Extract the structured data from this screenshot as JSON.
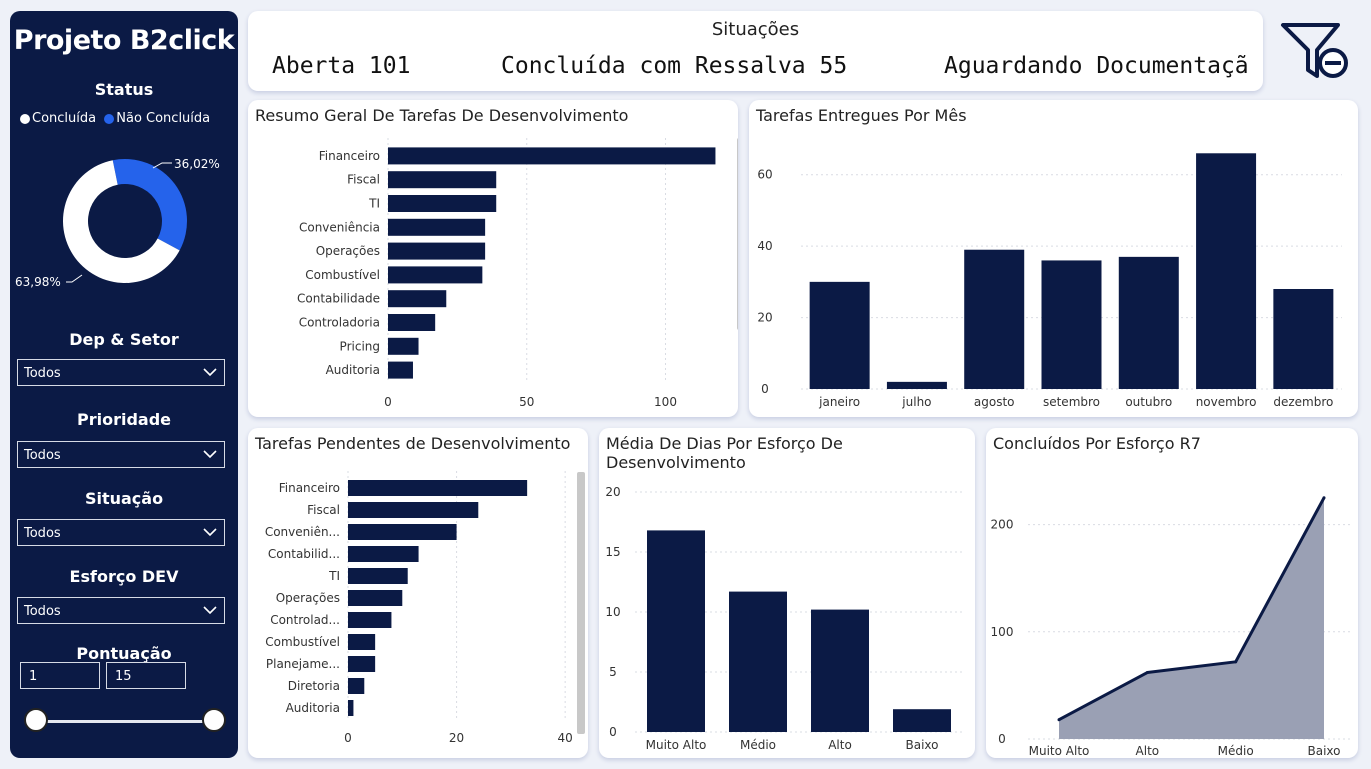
{
  "sidebar": {
    "title": "Projeto B2click",
    "status_label": "Status",
    "legend": [
      {
        "label": "Concluída",
        "color": "#ffffff"
      },
      {
        "label": "Não Concluída",
        "color": "#2563eb"
      }
    ],
    "filters": [
      {
        "label": "Dep & Setor",
        "value": "Todos"
      },
      {
        "label": "Prioridade",
        "value": "Todos"
      },
      {
        "label": "Situação",
        "value": "Todos"
      },
      {
        "label": "Esforço DEV",
        "value": "Todos"
      }
    ],
    "score": {
      "label": "Pontuação",
      "min": "1",
      "max": "15"
    }
  },
  "kpi": {
    "title": "Situações",
    "items": [
      "Aberta 101",
      "Concluída com Ressalva 55",
      "Aguardando Documentaçã"
    ]
  },
  "icons": {
    "filter": "filter-clear-icon",
    "chevron": "chevron-down-icon"
  },
  "chart_data": [
    {
      "id": "status",
      "type": "pie",
      "categories": [
        "Concluída",
        "Não Concluída"
      ],
      "values": [
        63.98,
        36.02
      ],
      "labels": [
        "63,98%",
        "36,02%"
      ],
      "colors": [
        "#ffffff",
        "#2563eb"
      ]
    },
    {
      "id": "resumo",
      "type": "bar",
      "orientation": "horizontal",
      "title": "Resumo Geral De Tarefas De Desenvolvimento",
      "categories": [
        "Financeiro",
        "Fiscal",
        "TI",
        "Conveniência",
        "Operações",
        "Combustível",
        "Contabilidade",
        "Controladoria",
        "Pricing",
        "Auditoria"
      ],
      "values": [
        118,
        39,
        39,
        35,
        35,
        34,
        21,
        17,
        11,
        9
      ],
      "xlim": [
        0,
        120
      ],
      "ticks": [
        0,
        50,
        100
      ],
      "grid": true
    },
    {
      "id": "entregues",
      "type": "bar",
      "title": "Tarefas Entregues Por Mês",
      "categories": [
        "janeiro",
        "julho",
        "agosto",
        "setembro",
        "outubro",
        "novembro",
        "dezembro"
      ],
      "values": [
        30,
        2,
        39,
        36,
        37,
        66,
        28
      ],
      "ylim": [
        0,
        70
      ],
      "ticks": [
        0,
        20,
        40,
        60
      ],
      "grid": true
    },
    {
      "id": "pendentes",
      "type": "bar",
      "orientation": "horizontal",
      "title": "Tarefas Pendentes de Desenvolvimento",
      "categories": [
        "Financeiro",
        "Fiscal",
        "Conveniên...",
        "Contabilid...",
        "TI",
        "Operações",
        "Controlad...",
        "Combustível",
        "Planejame...",
        "Diretoria",
        "Auditoria"
      ],
      "values": [
        33,
        24,
        20,
        13,
        11,
        10,
        8,
        5,
        5,
        3,
        1
      ],
      "xlim": [
        0,
        42
      ],
      "ticks": [
        0,
        20,
        40
      ],
      "grid": true
    },
    {
      "id": "media",
      "type": "bar",
      "title": "Média De Dias Por Esforço De Desenvolvimento",
      "categories": [
        "Muito Alto",
        "Médio",
        "Alto",
        "Baixo"
      ],
      "values": [
        16.8,
        11.7,
        10.2,
        1.9
      ],
      "ylim": [
        0,
        20
      ],
      "ticks": [
        0,
        5,
        10,
        15,
        20
      ],
      "grid": true
    },
    {
      "id": "concluidos",
      "type": "area",
      "title": "Concluídos Por Esforço R7",
      "categories": [
        "Muito Alto",
        "Alto",
        "Médio",
        "Baixo"
      ],
      "values": [
        18,
        62,
        72,
        225
      ],
      "ylim": [
        0,
        250
      ],
      "ticks": [
        0,
        100,
        200
      ],
      "grid": true
    }
  ]
}
